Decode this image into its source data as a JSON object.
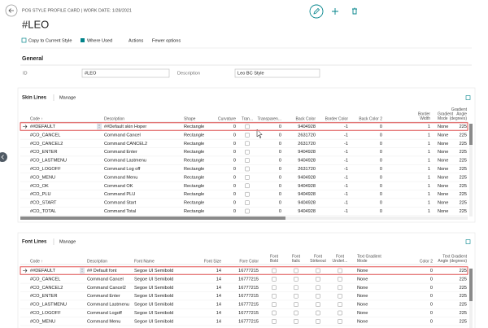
{
  "header": {
    "breadcrumb": "POS STYLE PROFILE CARD | WORK DATE: 1/28/2021",
    "title": "#LEO"
  },
  "actions": [
    "Copy to Current Style",
    "Where Used",
    "Actions",
    "Fewer options"
  ],
  "general": {
    "title": "General",
    "fields": [
      {
        "label": "ID",
        "value": "#LEO"
      },
      {
        "label": "Description",
        "value": "Leo BC Style"
      }
    ]
  },
  "skin_lines": {
    "title": "Skin Lines",
    "manage": "Manage",
    "columns": [
      "Code ↑",
      "Description",
      "Shape",
      "Curvature",
      "Tran...",
      "Transparen...",
      "Back Color",
      "Border Color",
      "Back Color 2",
      "Border Width",
      "Gradient Mode",
      "Gradient Angle (degrees)"
    ],
    "rows": [
      [
        "##DEFAULT",
        "##Default skin Hoper",
        "Rectangle",
        "0",
        false,
        "0",
        "9404928",
        "-1",
        "0",
        "1",
        "None",
        "225"
      ],
      [
        "#CO_CANCEL",
        "Command Cancel",
        "Rectangle",
        "0",
        false,
        "0",
        "2631720",
        "-1",
        "0",
        "1",
        "None",
        "225"
      ],
      [
        "#CO_CANCEL2",
        "Command CANCEL2",
        "Rectangle",
        "0",
        false,
        "0",
        "2631720",
        "-1",
        "0",
        "1",
        "None",
        "225"
      ],
      [
        "#CO_ENTER",
        "Command Enter",
        "Rectangle",
        "0",
        false,
        "0",
        "9404928",
        "-1",
        "0",
        "1",
        "None",
        "225"
      ],
      [
        "#CO_LASTMENU",
        "Command Lastmenu",
        "Rectangle",
        "0",
        false,
        "0",
        "9404928",
        "-1",
        "0",
        "1",
        "None",
        "225"
      ],
      [
        "#CO_LOGOFF",
        "Command Log off",
        "Rectangle",
        "0",
        false,
        "0",
        "2631720",
        "-1",
        "0",
        "1",
        "None",
        "225"
      ],
      [
        "#CO_MENU",
        "Command Menu",
        "Rectangle",
        "0",
        false,
        "0",
        "9404928",
        "-1",
        "0",
        "1",
        "None",
        "225"
      ],
      [
        "#CO_OK",
        "Command OK",
        "Rectangle",
        "0",
        false,
        "0",
        "9404928",
        "-1",
        "0",
        "1",
        "None",
        "225"
      ],
      [
        "#CO_PLU",
        "Command PLU",
        "Rectangle",
        "0",
        false,
        "0",
        "9404928",
        "-1",
        "0",
        "1",
        "None",
        "225"
      ],
      [
        "#CO_START",
        "Command Start",
        "Rectangle",
        "0",
        false,
        "0",
        "9404928",
        "-1",
        "0",
        "1",
        "None",
        "225"
      ],
      [
        "#CO_TOTAL",
        "Command Total",
        "Rectangle",
        "0",
        false,
        "0",
        "9404928",
        "-1",
        "0",
        "1",
        "None",
        "225"
      ]
    ]
  },
  "font_lines": {
    "title": "Font Lines",
    "manage": "Manage",
    "columns": [
      "Code ↑",
      "Description",
      "Font Name",
      "Font Size",
      "Fore Color",
      "Font Bold",
      "Font Italic",
      "Font Strikeout",
      "Font Underl...",
      "Text Gradient Mode",
      "Color 2",
      "Text Gradient Angle (degrees)"
    ],
    "rows": [
      [
        "##DEFAULT",
        "## Default font",
        "Segoe UI Semibold",
        "14",
        "16777215",
        false,
        false,
        false,
        false,
        "None",
        "0",
        "225"
      ],
      [
        "#CO_CANCEL",
        "Command Cancel",
        "Segoe UI Semibold",
        "14",
        "16777215",
        false,
        false,
        false,
        false,
        "None",
        "0",
        "225"
      ],
      [
        "#CO_CANCEL2",
        "Command Cancel2",
        "Segoe UI Semibold",
        "14",
        "16777215",
        false,
        false,
        false,
        false,
        "None",
        "0",
        "225"
      ],
      [
        "#CO_ENTER",
        "Command Enter",
        "Segoe UI Semibold",
        "14",
        "16777215",
        false,
        false,
        false,
        false,
        "None",
        "0",
        "225"
      ],
      [
        "#CO_LASTMENU",
        "Command Lastmenu",
        "Segoe UI Semibold",
        "14",
        "16777215",
        false,
        false,
        false,
        false,
        "None",
        "0",
        "225"
      ],
      [
        "#CO_LOGOFF",
        "Command Logoff",
        "Segoe UI Semibold",
        "14",
        "16777215",
        false,
        false,
        false,
        false,
        "None",
        "0",
        "225"
      ],
      [
        "#CO_MENU",
        "Command Menu",
        "Segoe UI Semibold",
        "14",
        "16777215",
        false,
        false,
        false,
        false,
        "None",
        "0",
        "225"
      ]
    ]
  }
}
